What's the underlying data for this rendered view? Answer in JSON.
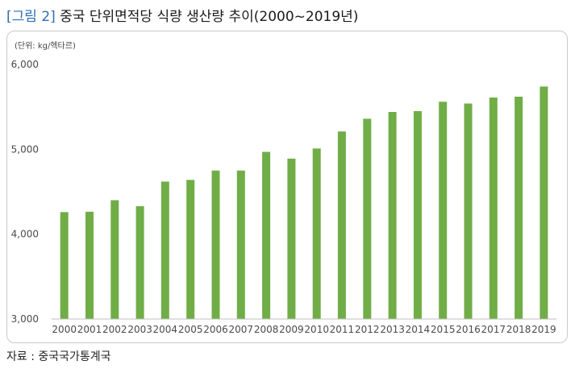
{
  "figure": {
    "tag": "[그림 2]",
    "title": "중국 단위면적당 식량 생산량 추이(2000~2019년)"
  },
  "source": "자료 : 중국국가통계국",
  "colors": {
    "bar": "#70ad47",
    "axis": "#bfbfbf",
    "tag": "#2e6db4"
  },
  "chart_data": {
    "type": "bar",
    "unit_label": "(단위: kg/헥타르)",
    "categories": [
      "2000",
      "2001",
      "2002",
      "2003",
      "2004",
      "2005",
      "2006",
      "2007",
      "2008",
      "2009",
      "2010",
      "2011",
      "2012",
      "2013",
      "2014",
      "2015",
      "2016",
      "2017",
      "2018",
      "2019"
    ],
    "values": [
      4260,
      4265,
      4400,
      4330,
      4620,
      4640,
      4750,
      4750,
      4970,
      4890,
      5010,
      5210,
      5360,
      5440,
      5450,
      5560,
      5540,
      5610,
      5620,
      5740
    ],
    "ylim": [
      3000,
      6000
    ],
    "yticks": [
      3000,
      4000,
      5000,
      6000
    ],
    "ytick_labels": [
      "3,000",
      "4,000",
      "5,000",
      "6,000"
    ],
    "grid": false,
    "legend": "none"
  }
}
